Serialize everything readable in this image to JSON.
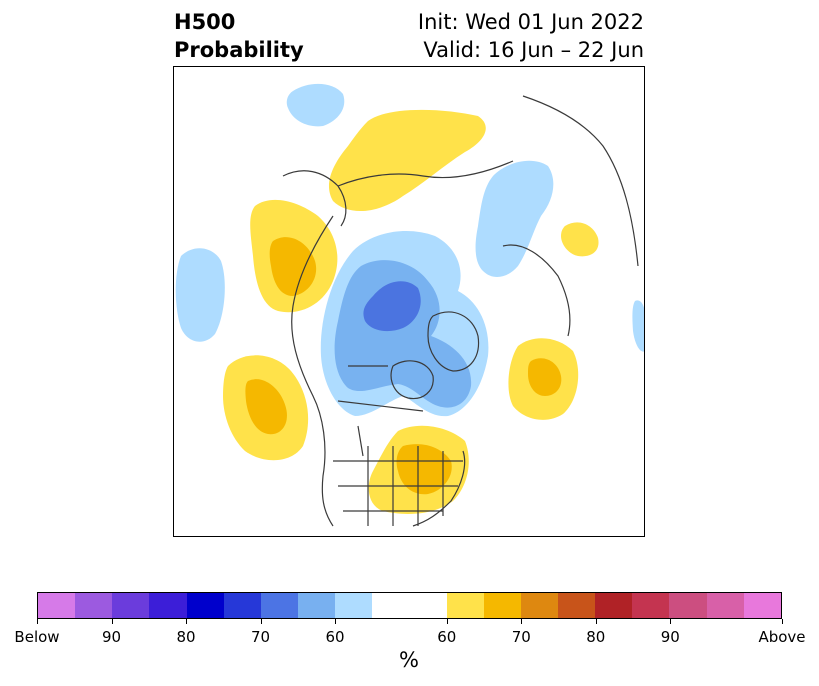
{
  "title": {
    "left_line1": "H500",
    "left_line2": "Probability",
    "right_line1": "Init: Wed 01 Jun 2022",
    "right_line2": "Valid: 16 Jun – 22 Jun"
  },
  "map": {
    "region": "Northern Hemisphere polar stereographic (Pacific/North America/Arctic)",
    "colors": {
      "above_60": "#ffe24a",
      "above_65": "#f5b800",
      "below_60": "#aedcff",
      "below_65": "#78b2f0",
      "below_70": "#4b74e0",
      "coastline": "#3a3a3a"
    },
    "anomalies": [
      {
        "sign": "above",
        "area": "Siberia / Arctic Ocean",
        "max_category": "60"
      },
      {
        "sign": "above",
        "area": "Gulf of Alaska / NE Pacific",
        "max_category": "65"
      },
      {
        "sign": "above",
        "area": "Central North Pacific (south)",
        "max_category": "65"
      },
      {
        "sign": "above",
        "area": "Eastern United States",
        "max_category": "65"
      },
      {
        "sign": "above",
        "area": "North Atlantic",
        "max_category": "65"
      },
      {
        "sign": "above",
        "area": "Black Sea region",
        "max_category": "60"
      },
      {
        "sign": "below",
        "area": "Canadian Arctic / Beaufort Sea",
        "max_category": "70"
      },
      {
        "sign": "below",
        "area": "Western North Pacific",
        "max_category": "60"
      },
      {
        "sign": "below",
        "area": "Eastern Europe / Scandinavia",
        "max_category": "60"
      },
      {
        "sign": "below",
        "area": "Greenland / Baffin Bay",
        "max_category": "65"
      },
      {
        "sign": "below",
        "area": "East Asia coast",
        "max_category": "60"
      }
    ]
  },
  "colorbar": {
    "segments": [
      "#d67ae8",
      "#9c5ae0",
      "#6b3cdc",
      "#3c1ed8",
      "#0000cc",
      "#2638d8",
      "#4c74e4",
      "#78b0f0",
      "#aedcff",
      "#ffffff",
      "#ffe24a",
      "#f5b800",
      "#de8810",
      "#c8541a",
      "#b02226",
      "#c43450",
      "#cc4e80",
      "#d860a8",
      "#e878dc"
    ],
    "segment_weights": [
      1,
      1,
      1,
      1,
      1,
      1,
      1,
      1,
      1,
      2,
      1,
      1,
      1,
      1,
      1,
      1,
      1,
      1,
      1
    ],
    "tick_labels": [
      "Below",
      "90",
      "80",
      "70",
      "60",
      "60",
      "70",
      "80",
      "90",
      "Above"
    ],
    "unit": "%"
  }
}
